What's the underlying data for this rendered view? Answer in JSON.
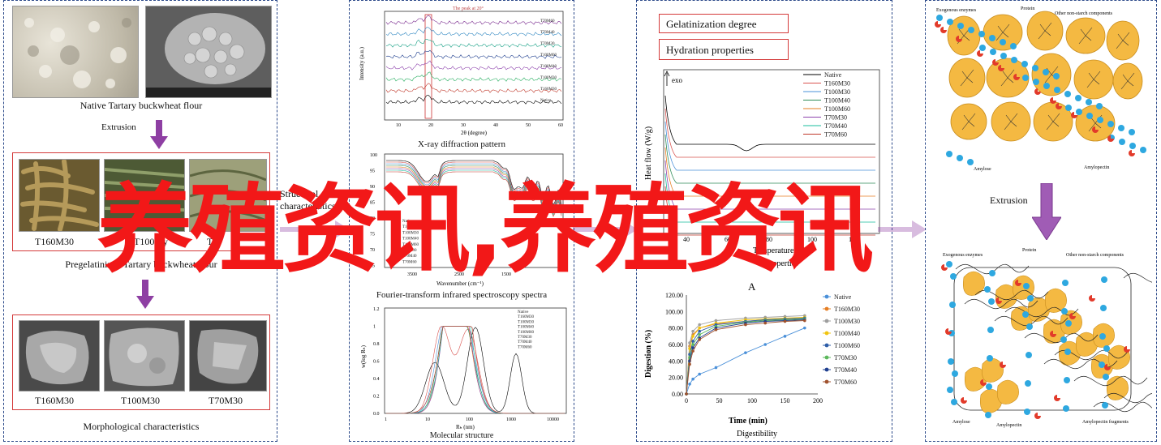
{
  "panel1": {
    "native_label": "Native Tartary buckwheat flour",
    "extrusion_label": "Extrusion",
    "sample_labels": [
      "T160M30",
      "T100My",
      "T"
    ],
    "pregel_label": "Pregelatinized Tartary buckwheat flour",
    "sem_labels": [
      "T160M30",
      "T100M30",
      "T70M30"
    ],
    "morph_label": "Morphological characteristics"
  },
  "panel2": {
    "xrd_peak_note": "The peak at 20°",
    "xrd_ylabel": "Intensity (a.u.)",
    "xrd_xlabel": "2θ (degree)",
    "xrd_ticks": [
      "10",
      "20",
      "30",
      "40",
      "50",
      "60"
    ],
    "xrd_legend": [
      "T70M60",
      "T70M40",
      "T70M30",
      "T100M60",
      "T100M40",
      "T100M30",
      "T160M30",
      "Native"
    ],
    "xrd_caption": "X-ray diffraction pattern",
    "ftir_yticks": [
      "100",
      "95",
      "90",
      "85",
      "80",
      "75",
      "70",
      "65"
    ],
    "ftir_xlabel": "Wavenumber (cm⁻¹)",
    "ftir_xticks": [
      "3500",
      "2500",
      "1500"
    ],
    "ftir_legend": [
      "Native",
      "T160M30",
      "T100M30",
      "T100M40",
      "T100M60",
      "T70M30",
      "T70M40",
      "T70M60"
    ],
    "ftir_caption": "Fourier-transform infrared spectroscopy spectra",
    "mw_yticks": [
      "1.2",
      "1",
      "0.8",
      "0.6",
      "0.4",
      "0.2",
      "0.0"
    ],
    "mw_ylabel": "w(log Rₕ)",
    "mw_xlabel": "Rₕ (nm)",
    "mw_xticks": [
      "1",
      "10",
      "100",
      "1000",
      "10000"
    ],
    "mw_legend": [
      "Native",
      "T160M30",
      "T100M30",
      "T100M40",
      "T100M60",
      "T70M30",
      "T70M40",
      "T70M60"
    ],
    "mw_caption": "Molecular structure"
  },
  "panel3": {
    "box1": "Gelatinization degree",
    "box2": "Hydration properties",
    "exo": "exo",
    "dsc_ylabel": "Heat flow (W/g)",
    "dsc_legend": [
      "Native",
      "T160M30",
      "T100M30",
      "T100M40",
      "T100M60",
      "T70M30",
      "T70M40",
      "T70M60"
    ],
    "dsc_xticks": [
      "40",
      "60",
      "80",
      "100",
      "120"
    ],
    "dsc_xlabel": "Temperature/°C",
    "thermal_caption": "properties",
    "letter_a": "A",
    "dig_ylabel": "Digestion (%)",
    "dig_yticks": [
      "120.00",
      "100.00",
      "80.00",
      "60.00",
      "40.00",
      "20.00",
      "0.00"
    ],
    "dig_xticks": [
      "0",
      "50",
      "100",
      "150",
      "200"
    ],
    "dig_xlabel": "Time (min)",
    "dig_legend": [
      "Native",
      "T160M30",
      "T100M30",
      "T100M40",
      "T100M60",
      "T70M30",
      "T70M40",
      "T70M60"
    ],
    "dig_caption": "Digestibility"
  },
  "panel4": {
    "top_labels": {
      "enzymes": "Exogenous enzymes",
      "protein": "Protein",
      "other": "Other non-starch components",
      "amylose": "Amylose",
      "amylopectin": "Amylopectin"
    },
    "extrusion_label": "Extrusion",
    "bottom_labels": {
      "enzymes": "Exogenous enzymes",
      "protein": "Protein",
      "other": "Other non-starch components",
      "amylose": "Amylose",
      "amylopectin": "Amylopectin",
      "fragments": "Amylopectin fragments"
    }
  },
  "connector_labels": [
    "Structural",
    "characteristics"
  ],
  "watermark": "养殖资讯,养殖资讯",
  "colors": {
    "panel_border": "#2c4a8a",
    "red_box": "#d43a3a",
    "arrow_purple": "#8e3fa3",
    "granule": "#f4b942",
    "protein_dot": "#2ea8e0",
    "enzyme": "#e23a2a",
    "watermark": "#f21818"
  },
  "chart_data": [
    {
      "type": "line",
      "title": "X-ray diffraction pattern",
      "xlabel": "2θ (degree)",
      "ylabel": "Intensity (a.u.)",
      "xlim": [
        5,
        60
      ],
      "series": [
        {
          "name": "T70M60"
        },
        {
          "name": "T70M40"
        },
        {
          "name": "T70M30"
        },
        {
          "name": "T100M60"
        },
        {
          "name": "T100M40"
        },
        {
          "name": "T100M30"
        },
        {
          "name": "T160M30"
        },
        {
          "name": "Native"
        }
      ]
    },
    {
      "type": "line",
      "title": "Fourier-transform infrared spectroscopy spectra",
      "xlabel": "Wavenumber (cm⁻¹)",
      "ylim": [
        65,
        100
      ],
      "series": [
        {
          "name": "Native"
        },
        {
          "name": "T160M30"
        },
        {
          "name": "T100M30"
        },
        {
          "name": "T100M40"
        },
        {
          "name": "T100M60"
        },
        {
          "name": "T70M30"
        },
        {
          "name": "T70M40"
        },
        {
          "name": "T70M60"
        }
      ]
    },
    {
      "type": "line",
      "title": "Molecular structure",
      "xlabel": "Rₕ (nm)",
      "ylabel": "w(log Rₕ)",
      "ylim": [
        0,
        1.2
      ],
      "xscale": "log",
      "series": [
        {
          "name": "Native"
        },
        {
          "name": "T160M30"
        },
        {
          "name": "T100M30"
        },
        {
          "name": "T100M40"
        },
        {
          "name": "T100M60"
        },
        {
          "name": "T70M30"
        },
        {
          "name": "T70M40"
        },
        {
          "name": "T70M60"
        }
      ]
    },
    {
      "type": "line",
      "title": "Digestibility",
      "xlabel": "Time (min)",
      "ylabel": "Digestion (%)",
      "ylim": [
        0,
        120
      ],
      "xlim": [
        0,
        200
      ],
      "x": [
        0,
        5,
        10,
        20,
        45,
        90,
        120,
        150,
        180
      ],
      "series": [
        {
          "name": "Native",
          "values": [
            0,
            12,
            18,
            24,
            32,
            50,
            60,
            70,
            80
          ]
        },
        {
          "name": "T160M30",
          "values": [
            0,
            58,
            72,
            80,
            85,
            88,
            90,
            91,
            92
          ]
        },
        {
          "name": "T100M30",
          "values": [
            0,
            62,
            76,
            84,
            89,
            92,
            93,
            94,
            95
          ]
        },
        {
          "name": "T100M40",
          "values": [
            0,
            55,
            70,
            80,
            86,
            90,
            91,
            92,
            93
          ]
        },
        {
          "name": "T100M60",
          "values": [
            0,
            48,
            64,
            76,
            84,
            88,
            90,
            91,
            92
          ]
        },
        {
          "name": "T70M30",
          "values": [
            0,
            44,
            60,
            72,
            82,
            87,
            89,
            90,
            91
          ]
        },
        {
          "name": "T70M40",
          "values": [
            0,
            40,
            56,
            68,
            80,
            86,
            88,
            89,
            90
          ]
        },
        {
          "name": "T70M60",
          "values": [
            0,
            36,
            52,
            66,
            78,
            84,
            86,
            88,
            89
          ]
        }
      ]
    }
  ]
}
